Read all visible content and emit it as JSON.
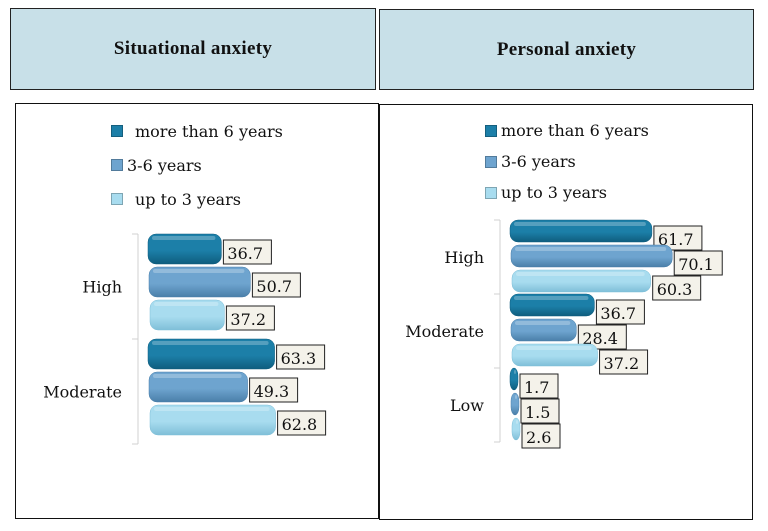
{
  "headers": {
    "left": "Situational anxiety",
    "right": "Personal anxiety"
  },
  "legend": [
    {
      "label": "more than 6 years",
      "color": "#1c7fa8",
      "icon": "legend-swatch-dark"
    },
    {
      "label": "3-6 years",
      "color": "#6ea4cf",
      "icon": "legend-swatch-medium"
    },
    {
      "label": "up to 3 years",
      "color": "#a8dcef",
      "icon": "legend-swatch-light"
    }
  ],
  "chart_data": [
    {
      "type": "bar",
      "orientation": "horizontal",
      "title": "Situational anxiety",
      "categories": [
        "High",
        "Moderate"
      ],
      "series": [
        {
          "name": "more than 6 years",
          "values": [
            36.7,
            63.3
          ]
        },
        {
          "name": "3-6 years",
          "values": [
            50.7,
            49.3
          ]
        },
        {
          "name": "up to 3 years",
          "values": [
            37.2,
            62.8
          ]
        }
      ],
      "data_labels": [
        [
          "36.7",
          "50.7",
          "37.2"
        ],
        [
          "63.3",
          "49.3",
          "62.8"
        ]
      ],
      "legend_position": "top",
      "grid": false,
      "xlim": [
        0,
        100
      ]
    },
    {
      "type": "bar",
      "orientation": "horizontal",
      "title": "Personal anxiety",
      "categories": [
        "High",
        "Moderate",
        "Low"
      ],
      "series": [
        {
          "name": "more than 6 years",
          "values": [
            61.7,
            36.7,
            1.7
          ]
        },
        {
          "name": "3-6 years",
          "values": [
            70.1,
            28.4,
            1.5
          ]
        },
        {
          "name": "up to 3 years",
          "values": [
            60.3,
            37.2,
            2.6
          ]
        }
      ],
      "data_labels": [
        [
          "61.7",
          "70.1",
          "60.3"
        ],
        [
          "36.7",
          "28.4",
          "37.2"
        ],
        [
          "1.7",
          "1.5",
          "2.6"
        ]
      ],
      "legend_position": "top",
      "grid": false,
      "xlim": [
        0,
        100
      ]
    }
  ]
}
